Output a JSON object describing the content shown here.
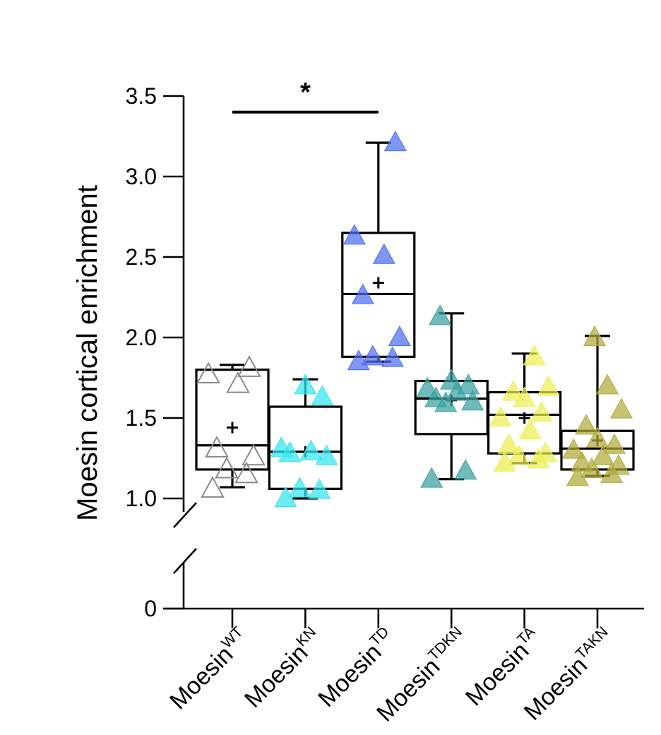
{
  "chart_data": {
    "type": "box",
    "ylabel": "Moesin cortical enrichment",
    "y_axis": {
      "ticks": [
        3.5,
        3.0,
        2.5,
        2.0,
        1.5,
        1.0,
        0
      ],
      "tick_labels": [
        "3.5",
        "3.0",
        "2.5",
        "2.0",
        "1.5",
        "1.0",
        "0"
      ],
      "lower_segment": [
        0,
        0.4
      ],
      "upper_segment": [
        0.95,
        3.5
      ],
      "axis_break": true
    },
    "categories": [
      {
        "label_base": "Moesin",
        "label_sup": "WT",
        "color": "#8a8a8a",
        "marker": "open-triangle",
        "whisker_min": 1.07,
        "q1": 1.18,
        "median": 1.33,
        "q3": 1.8,
        "whisker_max": 1.83,
        "mean": 1.44,
        "points": [
          1.06,
          1.15,
          1.18,
          1.26,
          1.31,
          1.71,
          1.77,
          1.81
        ]
      },
      {
        "label_base": "Moesin",
        "label_sup": "KN",
        "color": "#33e6f0",
        "marker": "filled-triangle",
        "whisker_min": 1.0,
        "q1": 1.06,
        "median": 1.29,
        "q3": 1.57,
        "whisker_max": 1.74,
        "mean": 1.29,
        "points": [
          1.0,
          1.05,
          1.06,
          1.26,
          1.28,
          1.29,
          1.31,
          1.63,
          1.7
        ]
      },
      {
        "label_base": "Moesin",
        "label_sup": "TD",
        "color": "#4f6ef0",
        "marker": "filled-triangle",
        "whisker_min": 1.85,
        "q1": 1.88,
        "median": 2.27,
        "q3": 2.65,
        "whisker_max": 3.21,
        "mean": 2.34,
        "points": [
          1.85,
          1.87,
          1.88,
          2.0,
          2.26,
          2.51,
          2.63,
          3.21
        ]
      },
      {
        "label_base": "Moesin",
        "label_sup": "TDKN",
        "color": "#3a9fa0",
        "marker": "filled-triangle",
        "whisker_min": 1.12,
        "q1": 1.4,
        "median": 1.62,
        "q3": 1.73,
        "whisker_max": 2.15,
        "mean": 1.61,
        "points": [
          1.12,
          1.17,
          1.59,
          1.6,
          1.62,
          1.66,
          1.68,
          1.7,
          1.73,
          2.13
        ]
      },
      {
        "label_base": "Moesin",
        "label_sup": "TA",
        "color": "#eeee55",
        "marker": "filled-triangle",
        "whisker_min": 1.22,
        "q1": 1.28,
        "median": 1.52,
        "q3": 1.66,
        "whisker_max": 1.9,
        "mean": 1.5,
        "points": [
          1.22,
          1.24,
          1.26,
          1.28,
          1.33,
          1.42,
          1.5,
          1.53,
          1.62,
          1.66,
          1.69,
          1.88
        ]
      },
      {
        "label_base": "Moesin",
        "label_sup": "TAKN",
        "color": "#b0ab3c",
        "marker": "filled-triangle",
        "whisker_min": 1.14,
        "q1": 1.18,
        "median": 1.31,
        "q3": 1.42,
        "whisker_max": 2.01,
        "mean": 1.36,
        "points": [
          1.13,
          1.15,
          1.18,
          1.2,
          1.22,
          1.26,
          1.3,
          1.33,
          1.37,
          1.45,
          1.55,
          1.7,
          2.0
        ]
      }
    ],
    "significance": [
      {
        "from_index": 0,
        "to_index": 2,
        "y": 3.4,
        "label": "*"
      }
    ]
  }
}
